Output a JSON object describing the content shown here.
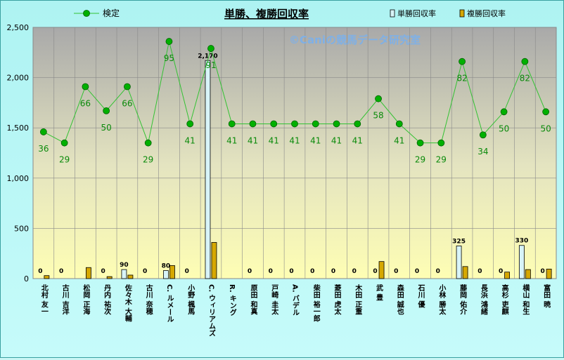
{
  "chart_data": {
    "type": "bar",
    "title": "単勝、複勝回収率",
    "watermark": "©Caniの競馬データ研究室",
    "categories": [
      "北村 友一",
      "古川 吉洋",
      "松岡 正海",
      "丹内 祐次",
      "佐々木 大輔",
      "古川 奈穂",
      "C. ルメール",
      "小野 楓馬",
      "C. ウィリアムズ",
      "R. キング",
      "原田 和真",
      "戸崎 圭太",
      "A. バデル",
      "柴田 裕一郎",
      "菱田 虎太",
      "木田 正重",
      "武 豊",
      "森田 誠也",
      "石川 優",
      "小林 勝太",
      "藤岡 佑介",
      "長浜 鴻緒",
      "高杉 吏麒",
      "横山 和生",
      "富田 暁"
    ],
    "ylim": [
      0,
      2500
    ],
    "yticks": [
      "0",
      "500",
      "1,000",
      "1,500",
      "2,000",
      "2,500"
    ],
    "series": [
      {
        "name": "単勝回収率",
        "type": "bar",
        "color": "#d8f4f8",
        "values": [
          0,
          0,
          0,
          0,
          90,
          0,
          80,
          0,
          2170,
          0,
          0,
          0,
          0,
          0,
          0,
          0,
          0,
          0,
          0,
          0,
          325,
          0,
          0,
          330,
          0
        ]
      },
      {
        "name": "複勝回収率",
        "type": "bar",
        "color": "#d6a800",
        "values": [
          30,
          0,
          110,
          20,
          35,
          0,
          130,
          0,
          360,
          0,
          0,
          0,
          0,
          0,
          0,
          0,
          170,
          0,
          0,
          0,
          120,
          0,
          65,
          90,
          95
        ]
      },
      {
        "name": "検定",
        "type": "line",
        "color": "#00a000",
        "values": [
          1460,
          1350,
          1910,
          1670,
          1910,
          1350,
          2360,
          1540,
          2290,
          1540,
          1540,
          1540,
          1540,
          1540,
          1540,
          1540,
          1790,
          1540,
          1350,
          1350,
          2160,
          1430,
          1660,
          2160,
          1660
        ],
        "labels": [
          "36",
          "29",
          "66",
          "50",
          "66",
          "29",
          "95",
          "41",
          "91",
          "41",
          "41",
          "41",
          "41",
          "41",
          "41",
          "41",
          "58",
          "41",
          "29",
          "29",
          "82",
          "34",
          "50",
          "82",
          "50"
        ]
      }
    ],
    "tan_labels": [
      "0",
      "0",
      "",
      "0",
      "90",
      "0",
      "80",
      "0",
      "2,170",
      "",
      "0",
      "0",
      "0",
      "0",
      "0",
      "0",
      "0",
      "0",
      "0",
      "0",
      "325",
      "0",
      "0",
      "330",
      "0"
    ]
  }
}
